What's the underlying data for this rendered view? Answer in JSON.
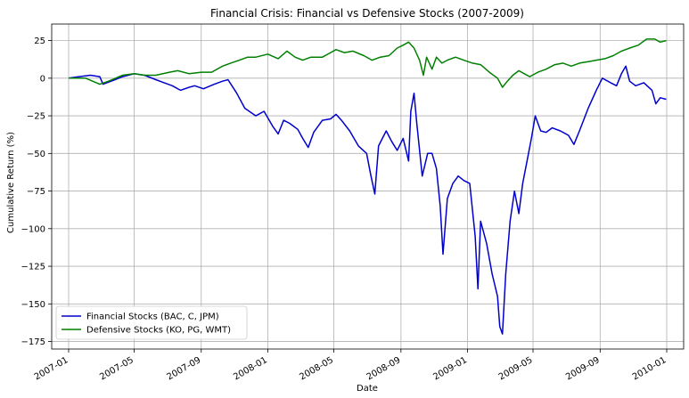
{
  "chart_data": {
    "type": "line",
    "title": "Financial Crisis: Financial vs Defensive Stocks (2007-2009)",
    "xlabel": "Date",
    "ylabel": "Cumulative Return (%)",
    "grid": true,
    "legend_position": "lower-left",
    "ylim": [
      -180,
      36
    ],
    "xlim": [
      "2006-12-01",
      "2010-02-01"
    ],
    "x_ticks": [
      "2007-01",
      "2007-05",
      "2007-09",
      "2008-01",
      "2008-05",
      "2008-09",
      "2009-01",
      "2009-05",
      "2009-09",
      "2010-01"
    ],
    "y_ticks": [
      "25",
      "0",
      "−25",
      "−50",
      "−75",
      "−100",
      "−125",
      "−150",
      "−175"
    ],
    "y_tick_values": [
      25,
      0,
      -25,
      -50,
      -75,
      -100,
      -125,
      -150,
      -175
    ],
    "series": [
      {
        "name": "Financial Stocks (BAC, C, JPM)",
        "color": "#0000cc",
        "points": [
          [
            "2007-01-01",
            0
          ],
          [
            "2007-01-20",
            1
          ],
          [
            "2007-02-10",
            2
          ],
          [
            "2007-02-27",
            1
          ],
          [
            "2007-03-05",
            -4
          ],
          [
            "2007-03-20",
            -2
          ],
          [
            "2007-04-10",
            1
          ],
          [
            "2007-05-01",
            3
          ],
          [
            "2007-05-20",
            2
          ],
          [
            "2007-06-10",
            -1
          ],
          [
            "2007-06-25",
            -3
          ],
          [
            "2007-07-10",
            -5
          ],
          [
            "2007-07-25",
            -8
          ],
          [
            "2007-08-10",
            -6
          ],
          [
            "2007-08-20",
            -5
          ],
          [
            "2007-09-05",
            -7
          ],
          [
            "2007-09-25",
            -4
          ],
          [
            "2007-10-10",
            -2
          ],
          [
            "2007-10-20",
            -1
          ],
          [
            "2007-11-05",
            -10
          ],
          [
            "2007-11-20",
            -20
          ],
          [
            "2007-12-10",
            -25
          ],
          [
            "2007-12-25",
            -22
          ],
          [
            "2008-01-10",
            -32
          ],
          [
            "2008-01-20",
            -37
          ],
          [
            "2008-01-30",
            -28
          ],
          [
            "2008-02-10",
            -30
          ],
          [
            "2008-02-25",
            -34
          ],
          [
            "2008-03-05",
            -40
          ],
          [
            "2008-03-15",
            -46
          ],
          [
            "2008-03-25",
            -36
          ],
          [
            "2008-04-10",
            -28
          ],
          [
            "2008-04-25",
            -27
          ],
          [
            "2008-05-05",
            -24
          ],
          [
            "2008-05-15",
            -28
          ],
          [
            "2008-05-30",
            -35
          ],
          [
            "2008-06-15",
            -45
          ],
          [
            "2008-06-30",
            -50
          ],
          [
            "2008-07-08",
            -65
          ],
          [
            "2008-07-15",
            -77
          ],
          [
            "2008-07-22",
            -45
          ],
          [
            "2008-08-05",
            -35
          ],
          [
            "2008-08-15",
            -42
          ],
          [
            "2008-08-25",
            -48
          ],
          [
            "2008-09-05",
            -40
          ],
          [
            "2008-09-15",
            -55
          ],
          [
            "2008-09-19",
            -22
          ],
          [
            "2008-09-25",
            -10
          ],
          [
            "2008-09-30",
            -30
          ],
          [
            "2008-10-10",
            -65
          ],
          [
            "2008-10-20",
            -50
          ],
          [
            "2008-10-28",
            -50
          ],
          [
            "2008-11-05",
            -60
          ],
          [
            "2008-11-12",
            -85
          ],
          [
            "2008-11-17",
            -117
          ],
          [
            "2008-11-25",
            -80
          ],
          [
            "2008-12-05",
            -70
          ],
          [
            "2008-12-15",
            -65
          ],
          [
            "2008-12-25",
            -68
          ],
          [
            "2009-01-05",
            -70
          ],
          [
            "2009-01-15",
            -105
          ],
          [
            "2009-01-20",
            -140
          ],
          [
            "2009-01-25",
            -95
          ],
          [
            "2009-02-05",
            -110
          ],
          [
            "2009-02-15",
            -130
          ],
          [
            "2009-02-25",
            -145
          ],
          [
            "2009-03-01",
            -165
          ],
          [
            "2009-03-06",
            -170
          ],
          [
            "2009-03-12",
            -130
          ],
          [
            "2009-03-20",
            -95
          ],
          [
            "2009-03-28",
            -75
          ],
          [
            "2009-04-05",
            -90
          ],
          [
            "2009-04-12",
            -70
          ],
          [
            "2009-04-20",
            -55
          ],
          [
            "2009-04-28",
            -40
          ],
          [
            "2009-05-05",
            -25
          ],
          [
            "2009-05-15",
            -35
          ],
          [
            "2009-05-25",
            -36
          ],
          [
            "2009-06-05",
            -33
          ],
          [
            "2009-06-20",
            -35
          ],
          [
            "2009-07-05",
            -38
          ],
          [
            "2009-07-15",
            -44
          ],
          [
            "2009-07-25",
            -35
          ],
          [
            "2009-08-10",
            -20
          ],
          [
            "2009-08-25",
            -8
          ],
          [
            "2009-09-05",
            0
          ],
          [
            "2009-09-20",
            -3
          ],
          [
            "2009-10-01",
            -5
          ],
          [
            "2009-10-10",
            3
          ],
          [
            "2009-10-18",
            8
          ],
          [
            "2009-10-25",
            -2
          ],
          [
            "2009-11-05",
            -5
          ],
          [
            "2009-11-20",
            -3
          ],
          [
            "2009-12-05",
            -8
          ],
          [
            "2009-12-12",
            -17
          ],
          [
            "2009-12-20",
            -13
          ],
          [
            "2009-12-31",
            -14
          ]
        ]
      },
      {
        "name": "Defensive Stocks (KO, PG, WMT)",
        "color": "#008000",
        "points": [
          [
            "2007-01-01",
            0
          ],
          [
            "2007-02-01",
            0
          ],
          [
            "2007-02-27",
            -4
          ],
          [
            "2007-03-15",
            -2
          ],
          [
            "2007-04-10",
            2
          ],
          [
            "2007-05-01",
            3
          ],
          [
            "2007-05-20",
            2
          ],
          [
            "2007-06-10",
            2
          ],
          [
            "2007-07-05",
            4
          ],
          [
            "2007-07-20",
            5
          ],
          [
            "2007-08-10",
            3
          ],
          [
            "2007-09-01",
            4
          ],
          [
            "2007-09-20",
            4
          ],
          [
            "2007-10-10",
            8
          ],
          [
            "2007-10-25",
            10
          ],
          [
            "2007-11-10",
            12
          ],
          [
            "2007-11-25",
            14
          ],
          [
            "2007-12-10",
            14
          ],
          [
            "2008-01-01",
            16
          ],
          [
            "2008-01-20",
            13
          ],
          [
            "2008-02-05",
            18
          ],
          [
            "2008-02-20",
            14
          ],
          [
            "2008-03-05",
            12
          ],
          [
            "2008-03-20",
            14
          ],
          [
            "2008-04-10",
            14
          ],
          [
            "2008-04-25",
            17
          ],
          [
            "2008-05-05",
            19
          ],
          [
            "2008-05-20",
            17
          ],
          [
            "2008-06-05",
            18
          ],
          [
            "2008-06-25",
            15
          ],
          [
            "2008-07-10",
            12
          ],
          [
            "2008-07-25",
            14
          ],
          [
            "2008-08-10",
            15
          ],
          [
            "2008-08-25",
            20
          ],
          [
            "2008-09-05",
            22
          ],
          [
            "2008-09-15",
            24
          ],
          [
            "2008-09-25",
            20
          ],
          [
            "2008-10-05",
            12
          ],
          [
            "2008-10-12",
            2
          ],
          [
            "2008-10-18",
            14
          ],
          [
            "2008-10-28",
            6
          ],
          [
            "2008-11-05",
            14
          ],
          [
            "2008-11-15",
            10
          ],
          [
            "2008-11-25",
            12
          ],
          [
            "2008-12-10",
            14
          ],
          [
            "2008-12-25",
            12
          ],
          [
            "2009-01-10",
            10
          ],
          [
            "2009-01-25",
            9
          ],
          [
            "2009-02-10",
            4
          ],
          [
            "2009-02-25",
            0
          ],
          [
            "2009-03-06",
            -6
          ],
          [
            "2009-03-15",
            -2
          ],
          [
            "2009-03-25",
            2
          ],
          [
            "2009-04-05",
            5
          ],
          [
            "2009-04-15",
            3
          ],
          [
            "2009-04-25",
            1
          ],
          [
            "2009-05-10",
            4
          ],
          [
            "2009-05-25",
            6
          ],
          [
            "2009-06-10",
            9
          ],
          [
            "2009-06-25",
            10
          ],
          [
            "2009-07-10",
            8
          ],
          [
            "2009-07-25",
            10
          ],
          [
            "2009-08-10",
            11
          ],
          [
            "2009-08-25",
            12
          ],
          [
            "2009-09-10",
            13
          ],
          [
            "2009-09-25",
            15
          ],
          [
            "2009-10-10",
            18
          ],
          [
            "2009-10-25",
            20
          ],
          [
            "2009-11-10",
            22
          ],
          [
            "2009-11-25",
            26
          ],
          [
            "2009-12-10",
            26
          ],
          [
            "2009-12-20",
            24
          ],
          [
            "2009-12-31",
            25
          ]
        ]
      }
    ]
  }
}
